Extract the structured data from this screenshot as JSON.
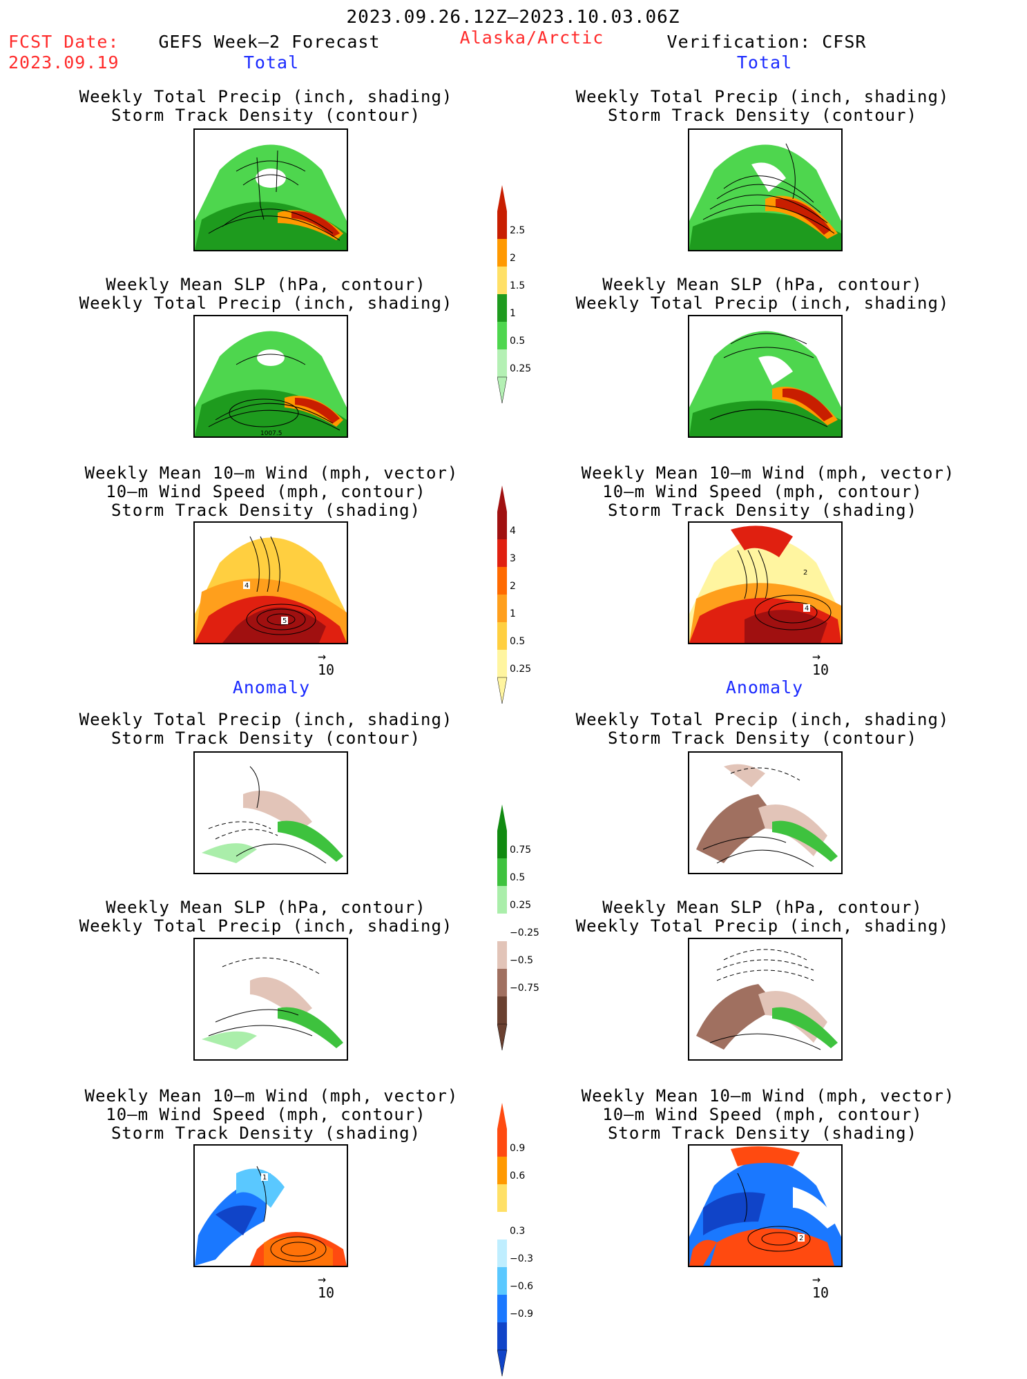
{
  "header": {
    "period": "2023.09.26.12Z—2023.10.03.06Z",
    "fcst_date_label": "FCST Date:",
    "fcst_date_value": "2023.09.19",
    "forecast_title": "GEFS Week—2 Forecast",
    "region": "Alaska/Arctic",
    "verification": "Verification: CFSR"
  },
  "sections": {
    "total": "Total",
    "anomaly": "Anomaly"
  },
  "panel_titles": {
    "precip_storm": [
      "Weekly Total Precip (inch, shading)",
      "Storm Track Density (contour)"
    ],
    "slp_precip": [
      "Weekly Mean SLP (hPa, contour)",
      "Weekly Total Precip (inch, shading)"
    ],
    "wind_storm": [
      "Weekly Mean 10—m Wind (mph, vector)",
      "10—m Wind Speed (mph, contour)",
      "Storm Track Density (shading)"
    ]
  },
  "panel_labels": {
    "slp_contour": "1007.5",
    "wind_max_fcst": "5",
    "wind_mid_fcst": "4",
    "wind_max_ver": "4",
    "wind_mid_ver": "2",
    "wind_anom_fcst": "1",
    "wind_anom_ver": "2"
  },
  "vector_scale": "10",
  "colorbars": {
    "precip_total": [
      "2.5",
      "2",
      "1.5",
      "1",
      "0.5",
      "0.25"
    ],
    "storm_total": [
      "4",
      "3",
      "2",
      "1",
      "0.5",
      "0.25"
    ],
    "precip_anom": [
      "0.75",
      "0.5",
      "0.25",
      "−0.25",
      "−0.5",
      "−0.75"
    ],
    "storm_anom": [
      "0.9",
      "0.6",
      "0.3",
      "−0.3",
      "−0.6",
      "−0.9"
    ]
  },
  "colors": {
    "precip_total": [
      "#c81e00",
      "#ff9900",
      "#ffe066",
      "#1e9b1e",
      "#4ed64e",
      "#b4f0b4"
    ],
    "storm_total": [
      "#a01010",
      "#e02010",
      "#ff6a00",
      "#ff9f1c",
      "#ffcf40",
      "#fff5a0"
    ],
    "precip_anom": [
      "#108a10",
      "#3ec23e",
      "#aaeeaa",
      "#ffffff",
      "#e2c4b8",
      "#a07060",
      "#6a4030"
    ],
    "storm_anom": [
      "#ff4a10",
      "#ff9900",
      "#ffe066",
      "#ffffff",
      "#bfeeff",
      "#5ac8ff",
      "#1a78ff",
      "#1044c8"
    ]
  }
}
